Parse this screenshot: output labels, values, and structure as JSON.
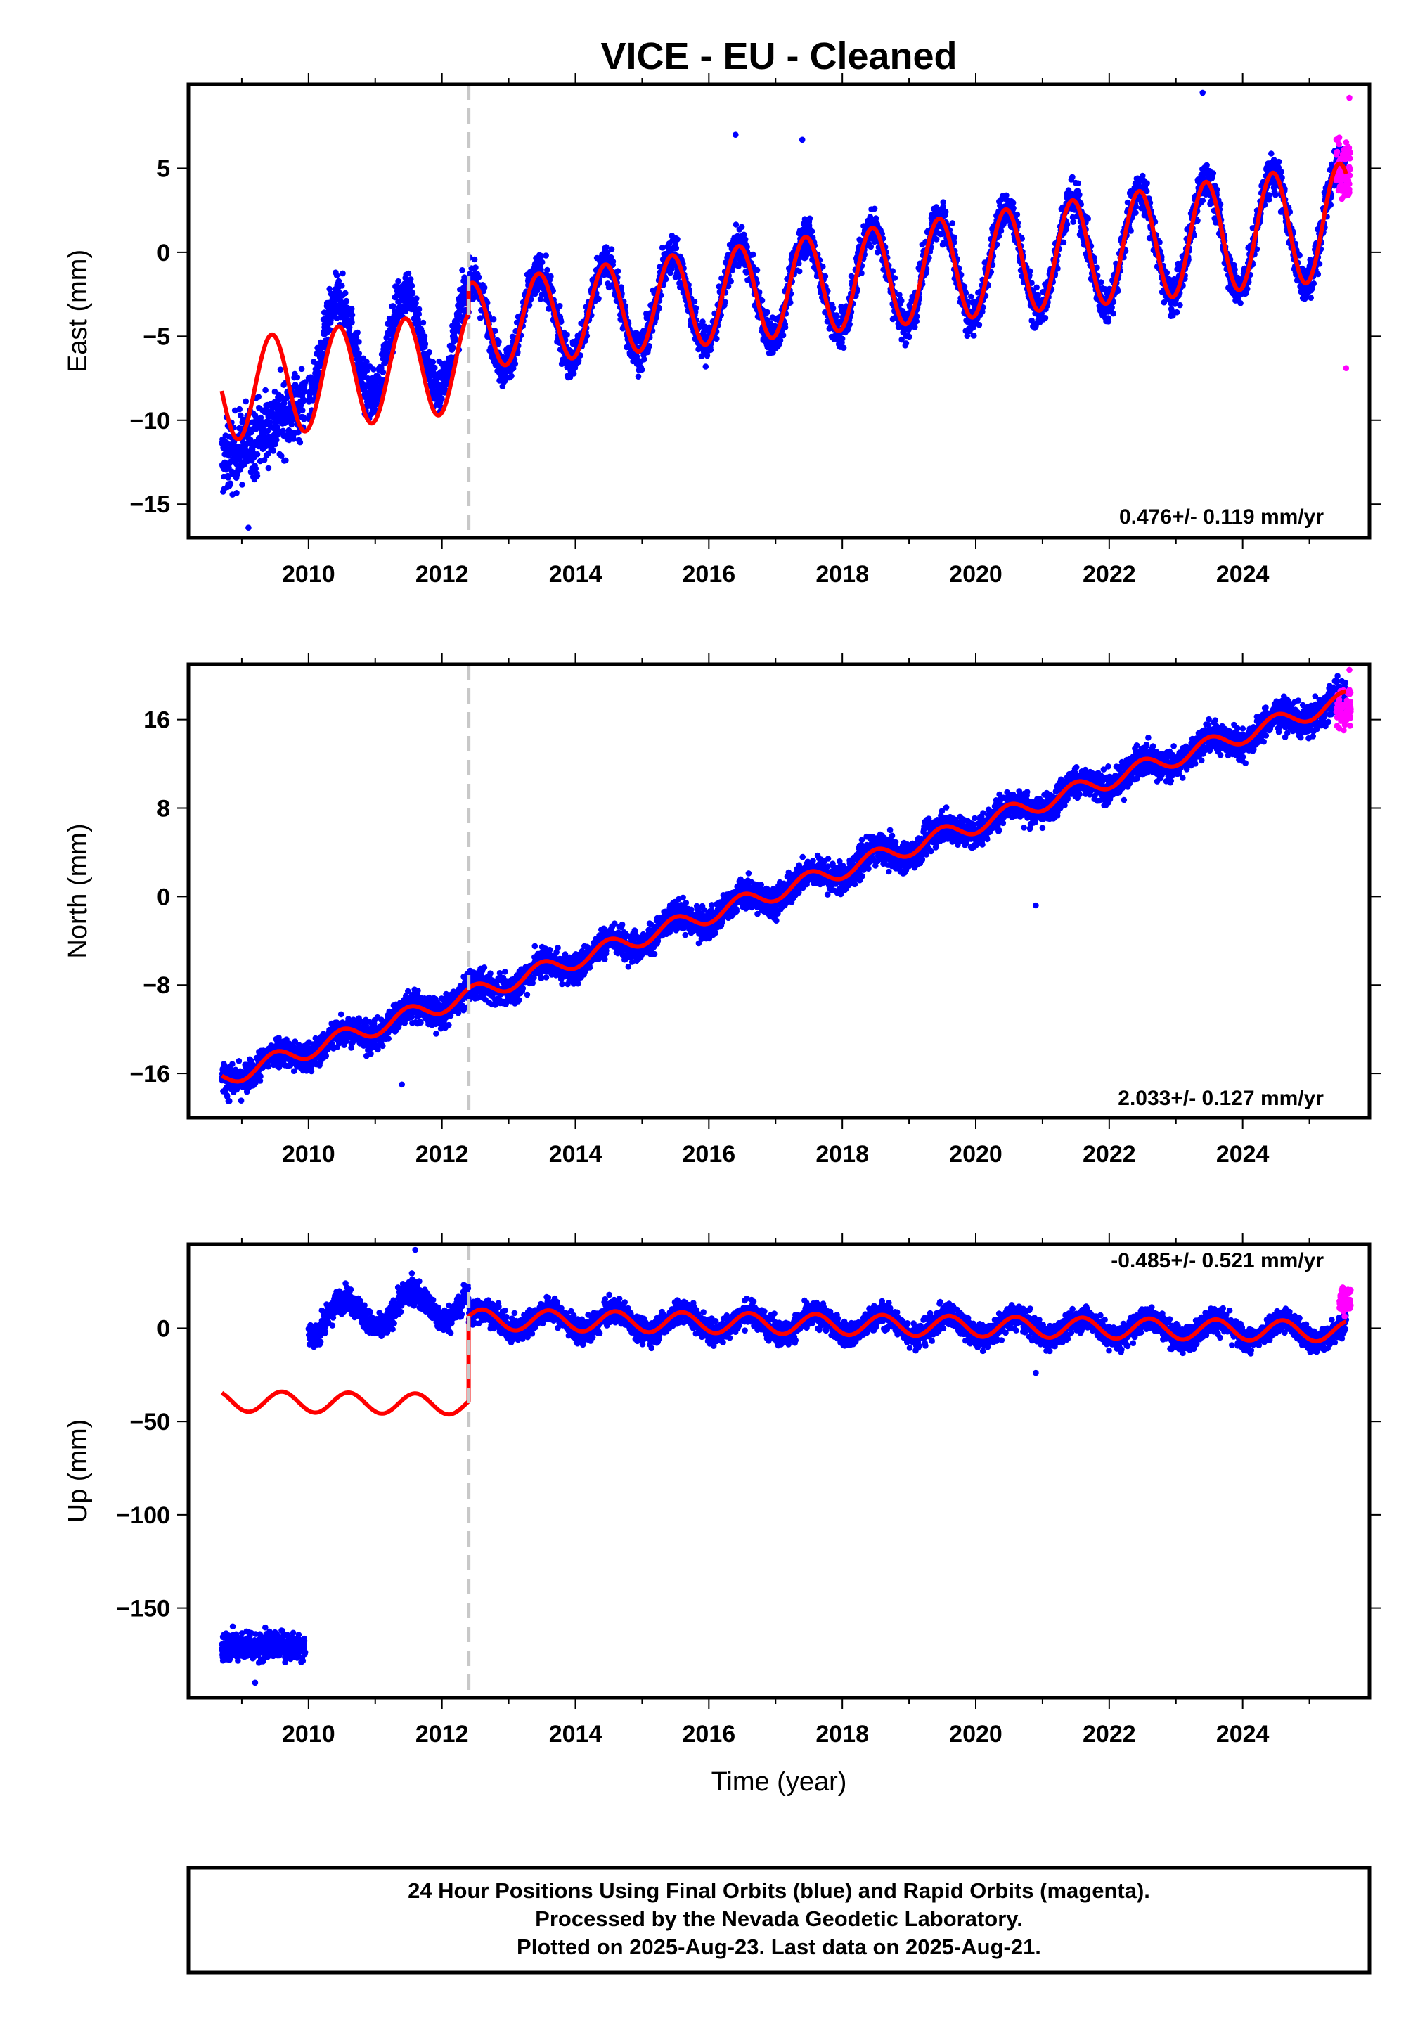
{
  "title": "VICE  - EU - Cleaned",
  "xlabel": "Time (year)",
  "footer": {
    "line1": "24 Hour Positions Using Final Orbits (blue) and Rapid Orbits (magenta).",
    "line2": "Processed by the Nevada Geodetic Laboratory.",
    "line3": "Plotted on 2025-Aug-23. Last data on 2025-Aug-21."
  },
  "colors": {
    "final": "#0000ff",
    "rapid": "#ff00ff",
    "model": "#ff0000",
    "step": "#c8c8c8"
  },
  "chart_data": [
    {
      "type": "scatter",
      "name": "east",
      "ylabel": "East (mm)",
      "rate": "0.476+/- 0.119 mm/yr",
      "xlim": [
        2008.2,
        2025.9
      ],
      "ylim": [
        -17,
        10
      ],
      "yticks": [
        5,
        0,
        -5,
        -10,
        -15
      ],
      "ytick_labels": [
        "5",
        "0",
        "−5",
        "−10",
        "−15"
      ],
      "xticks": [
        2010,
        2012,
        2014,
        2016,
        2018,
        2020,
        2022,
        2024
      ],
      "step_year": 2012.4,
      "model": {
        "start": 2008.7,
        "end": 2025.55,
        "break": 2012.4,
        "before": {
          "offset": -4.4,
          "slope": 0.476,
          "amp": 3.0,
          "peak": 0.45
        },
        "after": {
          "offset": -2.3,
          "slope": 0.476,
          "amp": 2.55,
          "amp_growth": 0.07,
          "peak": 0.45
        }
      },
      "final_segments": [
        {
          "from": 2008.7,
          "to": 2009.95,
          "center_at": 2008.7,
          "center_start": -12.5,
          "center_slope": 3.0,
          "scatter": 2.0
        },
        {
          "from": 2010.0,
          "to": 2012.4,
          "follow_model": true,
          "center_shift": 1.6,
          "scatter": 1.3
        },
        {
          "from": 2012.4,
          "to": 2025.55,
          "follow_model": true,
          "center_shift": 0,
          "scatter": 1.05
        }
      ],
      "rapid": {
        "from": 2025.4,
        "to": 2025.62,
        "center": 5.0,
        "scatter": 1.7,
        "outliers": [
          [
            2025.55,
            -6.9
          ],
          [
            2025.6,
            9.2
          ]
        ]
      },
      "outliers": [
        [
          2016.4,
          7.0
        ],
        [
          2017.4,
          6.7
        ],
        [
          2020.9,
          -4.4
        ],
        [
          2023.4,
          9.5
        ],
        [
          2009.1,
          -16.4
        ]
      ]
    },
    {
      "type": "scatter",
      "name": "north",
      "ylabel": "North (mm)",
      "rate": "2.033+/- 0.127 mm/yr",
      "xlim": [
        2008.2,
        2025.9
      ],
      "ylim": [
        -20,
        21
      ],
      "yticks": [
        16,
        8,
        0,
        -8,
        -16
      ],
      "ytick_labels": [
        "16",
        "8",
        "0",
        "−8",
        "−16"
      ],
      "xticks": [
        2010,
        2012,
        2014,
        2016,
        2018,
        2020,
        2022,
        2024
      ],
      "step_year": 2012.4,
      "model": {
        "start": 2008.7,
        "end": 2025.55,
        "break": 2100,
        "before": {
          "offset": 0.0,
          "slope": 2.033,
          "ref": 2016.8,
          "amp": 0.8,
          "peak": 0.5
        },
        "after": {
          "offset": 0.0,
          "slope": 2.033,
          "ref": 2016.8,
          "amp": 0.8,
          "peak": 0.5
        }
      },
      "final_segments": [
        {
          "from": 2008.7,
          "to": 2025.55,
          "follow_model": true,
          "center_shift": 0,
          "scatter": 1.25
        }
      ],
      "rapid": {
        "from": 2025.4,
        "to": 2025.62,
        "center": 17.0,
        "scatter": 1.6,
        "outliers": [
          [
            2025.6,
            20.5
          ]
        ]
      },
      "outliers": [
        [
          2011.4,
          -17.0
        ],
        [
          2020.9,
          -0.8
        ],
        [
          2008.8,
          -18.5
        ]
      ]
    },
    {
      "type": "scatter",
      "name": "up",
      "ylabel": "Up (mm)",
      "rate": "-0.485+/- 0.521 mm/yr",
      "xlim": [
        2008.2,
        2025.9
      ],
      "ylim": [
        -198,
        45
      ],
      "yticks": [
        0,
        -50,
        -100,
        -150
      ],
      "ytick_labels": [
        "0",
        "−50",
        "−100",
        "−150"
      ],
      "xticks": [
        2010,
        2012,
        2014,
        2016,
        2018,
        2020,
        2022,
        2024
      ],
      "step_year": 2012.4,
      "model": {
        "start": 2008.7,
        "end": 2025.55,
        "break": 2012.4,
        "before": {
          "offset": -43.0,
          "slope": -0.485,
          "amp": 5.5,
          "peak": 0.6
        },
        "after": {
          "offset": 2.5,
          "slope": -0.485,
          "amp": 5.5,
          "peak": 0.6
        }
      },
      "final_segments": [
        {
          "from": 2008.7,
          "to": 2009.95,
          "center_at": 2008.7,
          "center_start": -170.0,
          "center_slope": 0,
          "scatter": 7.0
        },
        {
          "from": 2010.0,
          "to": 2012.4,
          "center_at": 2010.0,
          "center_start": 5.0,
          "center_slope": 4.0,
          "seasonal": 9.0,
          "scatter": 6.0
        },
        {
          "from": 2012.4,
          "to": 2025.55,
          "follow_model": true,
          "center_shift": 0,
          "scatter": 6.0
        }
      ],
      "rapid": {
        "from": 2025.45,
        "to": 2025.62,
        "center": 15.0,
        "scatter": 6.0,
        "outliers": []
      },
      "outliers": [
        [
          2011.6,
          42.0
        ],
        [
          2020.9,
          -24.0
        ],
        [
          2009.2,
          -190.0
        ]
      ]
    }
  ]
}
